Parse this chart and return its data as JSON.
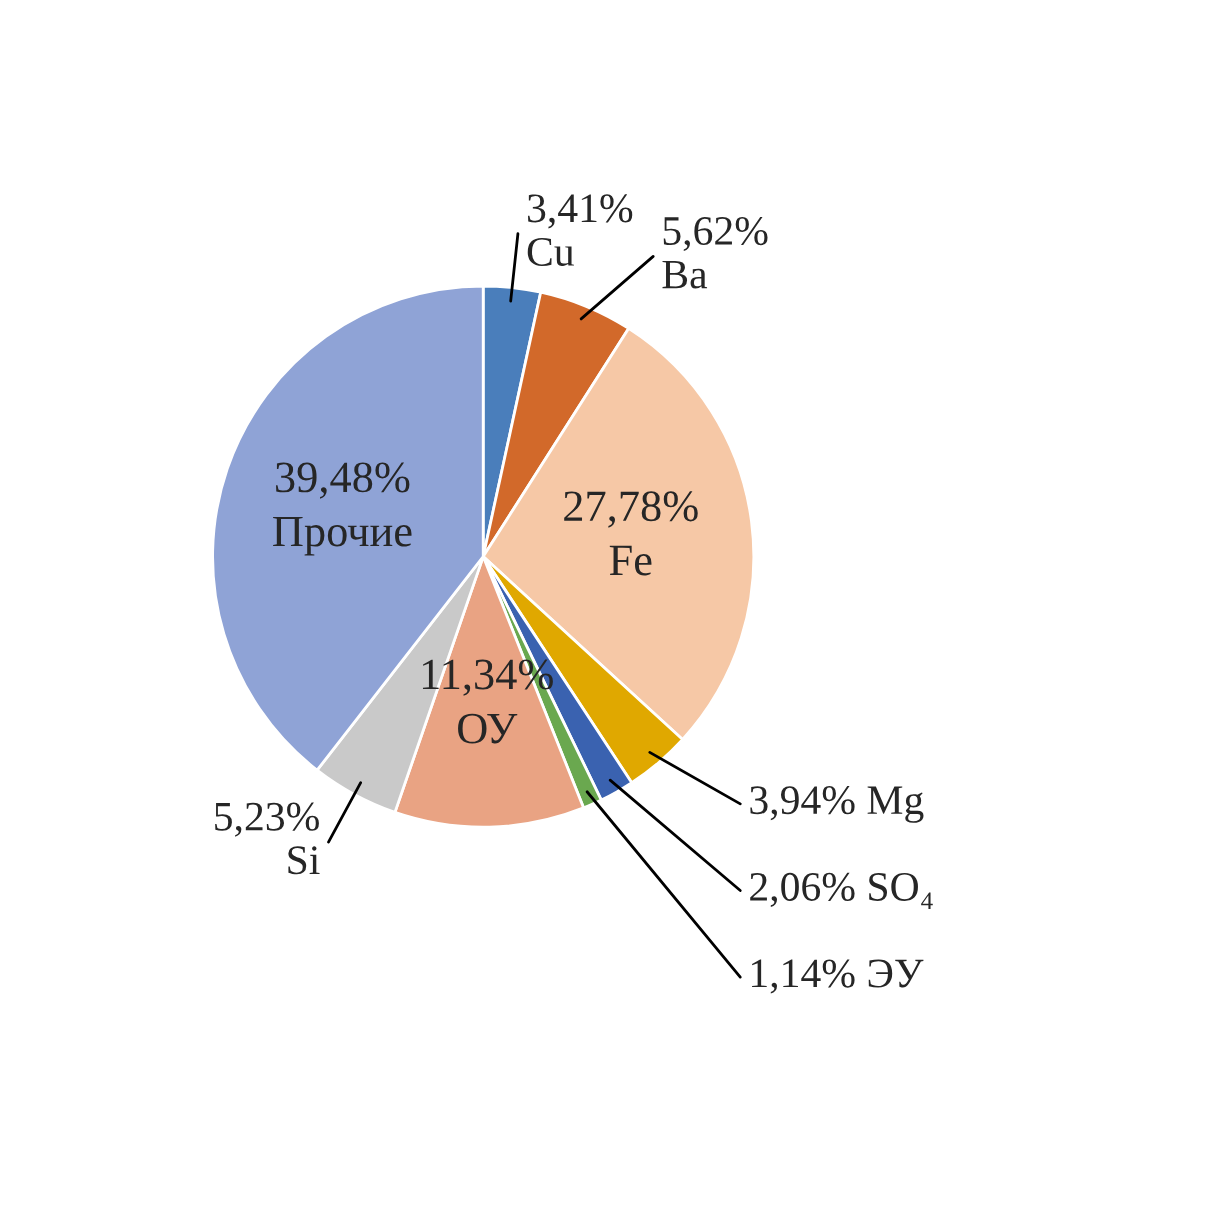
{
  "chart_data": {
    "type": "pie",
    "categories": [
      "Cu",
      "Ba",
      "Fe",
      "Mg",
      "SO₄",
      "ЭУ",
      "ОУ",
      "Si",
      "Прочие"
    ],
    "values": [
      3.41,
      5.62,
      27.78,
      3.94,
      2.06,
      1.14,
      11.34,
      5.23,
      39.48
    ],
    "value_labels": [
      "3,41%",
      "5,62%",
      "27,78%",
      "3,94%",
      "2,06%",
      "1,14%",
      "11,34%",
      "5,23%",
      "39,48%"
    ],
    "colors": [
      "#4a7ebb",
      "#d2692a",
      "#f6c8a6",
      "#e0a800",
      "#3a62b0",
      "#6aa84f",
      "#e9a383",
      "#c9c9c9",
      "#8fa3d6"
    ],
    "legend": false
  }
}
